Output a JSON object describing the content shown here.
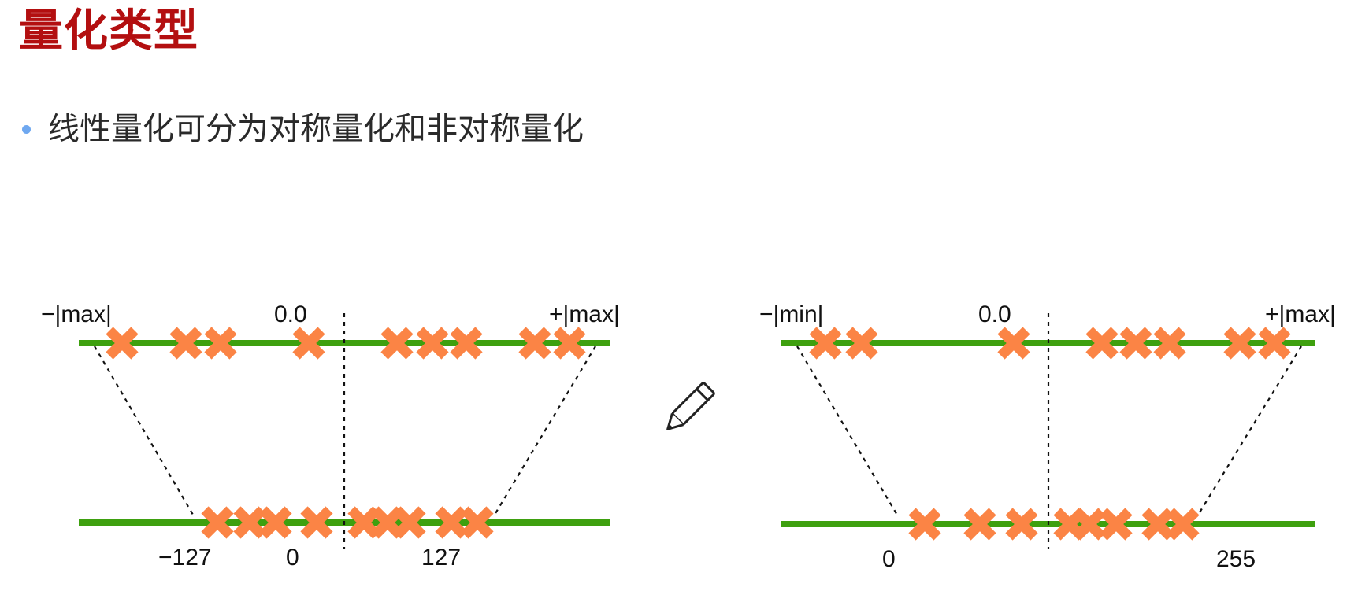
{
  "title": "量化类型",
  "bullet": "线性量化可分为对称量化和非对称量化",
  "colors": {
    "title": "#b30f10",
    "line": "#3ea00f",
    "mark": "#fb8445",
    "bullet": "#6fa8f0"
  },
  "icons": {
    "pencil": "pencil-icon"
  },
  "symmetric": {
    "top_labels": {
      "left": "−|max|",
      "center": "0.0",
      "right": "+|max|"
    },
    "bottom_labels": {
      "left": "−127",
      "center": "0",
      "right": "127"
    }
  },
  "asymmetric": {
    "top_labels": {
      "left": "−|min|",
      "center": "0.0",
      "right": "+|max|"
    },
    "bottom_labels": {
      "left": "0",
      "right": "255"
    }
  }
}
